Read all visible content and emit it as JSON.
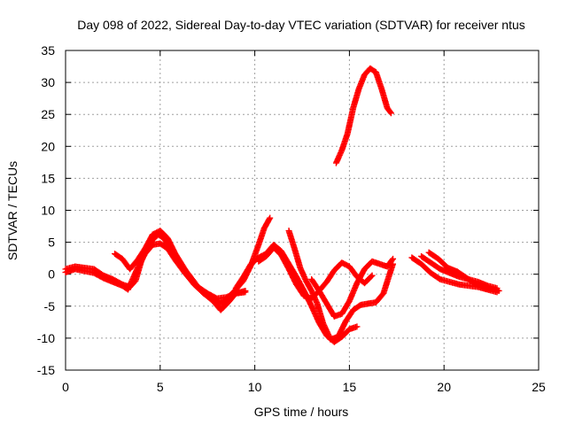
{
  "chart_data": {
    "type": "scatter",
    "title": "Day 098 of 2022, Sidereal Day-to-day VTEC variation (SDTVAR) for receiver ntus",
    "xlabel": "GPS time / hours",
    "ylabel": "SDTVAR / TECUs",
    "xlim": [
      0,
      25
    ],
    "ylim": [
      -15,
      35
    ],
    "xticks": [
      0,
      5,
      10,
      15,
      20,
      25
    ],
    "yticks": [
      -15,
      -10,
      -5,
      0,
      5,
      10,
      15,
      20,
      25,
      30,
      35
    ],
    "grid": true,
    "marker": "+",
    "color": "#ff0000",
    "series": [
      {
        "name": "track-1",
        "points": [
          [
            0.0,
            0.8
          ],
          [
            0.5,
            1.2
          ],
          [
            1.0,
            1.0
          ],
          [
            1.5,
            0.8
          ],
          [
            2.0,
            -0.2
          ],
          [
            2.5,
            -0.8
          ],
          [
            3.0,
            -1.6
          ],
          [
            3.4,
            -2.0
          ],
          [
            3.7,
            -1.0
          ],
          [
            4.0,
            2.0
          ],
          [
            4.3,
            4.0
          ],
          [
            4.6,
            5.4
          ],
          [
            4.9,
            6.2
          ],
          [
            5.2,
            5.6
          ],
          [
            5.6,
            3.8
          ],
          [
            6.0,
            1.8
          ],
          [
            6.5,
            0.0
          ],
          [
            7.0,
            -2.0
          ],
          [
            7.5,
            -3.0
          ],
          [
            8.0,
            -3.8
          ],
          [
            8.5,
            -3.6
          ],
          [
            9.0,
            -3.0
          ],
          [
            9.5,
            -2.8
          ]
        ]
      },
      {
        "name": "track-2",
        "points": [
          [
            0.0,
            0.3
          ],
          [
            0.5,
            0.8
          ],
          [
            1.0,
            0.5
          ],
          [
            1.5,
            0.2
          ],
          [
            2.0,
            -0.6
          ],
          [
            2.5,
            -1.2
          ],
          [
            3.0,
            -1.8
          ],
          [
            3.3,
            -2.4
          ],
          [
            3.6,
            -0.4
          ],
          [
            3.9,
            1.6
          ],
          [
            4.2,
            3.2
          ],
          [
            4.6,
            4.6
          ],
          [
            5.0,
            4.8
          ],
          [
            5.4,
            4.0
          ],
          [
            5.8,
            2.2
          ],
          [
            6.3,
            0.2
          ],
          [
            6.8,
            -1.6
          ],
          [
            7.3,
            -3.0
          ],
          [
            7.8,
            -4.2
          ],
          [
            8.2,
            -5.6
          ],
          [
            8.6,
            -4.4
          ],
          [
            9.0,
            -3.0
          ],
          [
            9.5,
            -2.6
          ]
        ]
      },
      {
        "name": "track-3",
        "points": [
          [
            2.6,
            3.2
          ],
          [
            3.0,
            2.4
          ],
          [
            3.4,
            0.8
          ],
          [
            3.8,
            2.2
          ],
          [
            4.2,
            4.0
          ],
          [
            4.6,
            6.2
          ],
          [
            5.0,
            6.8
          ],
          [
            5.4,
            5.6
          ],
          [
            5.8,
            3.2
          ],
          [
            6.3,
            0.8
          ],
          [
            6.8,
            -1.6
          ],
          [
            7.3,
            -3.0
          ],
          [
            7.8,
            -3.6
          ],
          [
            8.2,
            -4.6
          ],
          [
            8.6,
            -3.6
          ],
          [
            9.0,
            -2.4
          ],
          [
            9.4,
            -1.0
          ],
          [
            9.8,
            1.4
          ],
          [
            10.2,
            4.6
          ],
          [
            10.5,
            7.2
          ],
          [
            10.8,
            8.8
          ]
        ]
      },
      {
        "name": "track-4",
        "points": [
          [
            9.0,
            -2.2
          ],
          [
            9.4,
            -0.4
          ],
          [
            9.8,
            1.6
          ],
          [
            10.2,
            2.6
          ],
          [
            10.6,
            3.2
          ],
          [
            11.0,
            4.6
          ],
          [
            11.4,
            3.6
          ],
          [
            11.8,
            1.6
          ],
          [
            12.2,
            -0.4
          ],
          [
            12.6,
            -2.6
          ],
          [
            13.0,
            -5.0
          ],
          [
            13.4,
            -7.6
          ],
          [
            13.8,
            -9.6
          ],
          [
            14.2,
            -10.6
          ],
          [
            14.6,
            -9.8
          ],
          [
            15.0,
            -8.6
          ],
          [
            15.4,
            -8.2
          ]
        ]
      },
      {
        "name": "track-5",
        "points": [
          [
            10.2,
            2.0
          ],
          [
            10.6,
            2.8
          ],
          [
            11.0,
            4.2
          ],
          [
            11.4,
            3.0
          ],
          [
            11.8,
            0.8
          ],
          [
            12.2,
            -1.6
          ],
          [
            12.6,
            -3.4
          ],
          [
            13.0,
            -3.8
          ],
          [
            13.4,
            -2.6
          ],
          [
            13.8,
            -1.2
          ],
          [
            14.2,
            0.6
          ],
          [
            14.6,
            1.8
          ],
          [
            15.0,
            1.2
          ],
          [
            15.4,
            -0.4
          ],
          [
            15.8,
            -1.4
          ],
          [
            16.2,
            -0.2
          ]
        ]
      },
      {
        "name": "track-6",
        "points": [
          [
            11.8,
            6.8
          ],
          [
            12.1,
            4.0
          ],
          [
            12.4,
            1.0
          ],
          [
            12.7,
            -1.0
          ],
          [
            13.0,
            -2.6
          ],
          [
            13.3,
            -4.6
          ],
          [
            13.6,
            -7.6
          ],
          [
            14.0,
            -10.2
          ],
          [
            14.4,
            -9.8
          ],
          [
            14.8,
            -7.4
          ],
          [
            15.2,
            -5.6
          ],
          [
            15.6,
            -4.8
          ],
          [
            16.0,
            -4.6
          ],
          [
            16.4,
            -4.4
          ],
          [
            16.8,
            -3.0
          ],
          [
            17.1,
            -0.2
          ],
          [
            17.3,
            1.6
          ]
        ]
      },
      {
        "name": "track-7",
        "points": [
          [
            13.0,
            -0.8
          ],
          [
            13.4,
            -2.6
          ],
          [
            13.8,
            -4.6
          ],
          [
            14.2,
            -6.6
          ],
          [
            14.6,
            -6.2
          ],
          [
            15.0,
            -4.2
          ],
          [
            15.4,
            -1.4
          ],
          [
            15.8,
            0.8
          ],
          [
            16.2,
            2.0
          ],
          [
            16.6,
            1.6
          ],
          [
            17.0,
            1.2
          ],
          [
            17.3,
            2.4
          ]
        ]
      },
      {
        "name": "track-8",
        "points": [
          [
            14.3,
            17.4
          ],
          [
            14.6,
            19.4
          ],
          [
            14.9,
            22.0
          ],
          [
            15.2,
            26.0
          ],
          [
            15.5,
            29.0
          ],
          [
            15.8,
            31.2
          ],
          [
            16.1,
            32.2
          ],
          [
            16.4,
            31.6
          ],
          [
            16.7,
            29.0
          ],
          [
            17.0,
            26.0
          ],
          [
            17.2,
            25.2
          ]
        ]
      },
      {
        "name": "track-9",
        "points": [
          [
            18.3,
            2.6
          ],
          [
            18.8,
            1.6
          ],
          [
            19.3,
            0.2
          ],
          [
            19.8,
            -0.8
          ],
          [
            20.3,
            -1.2
          ],
          [
            20.8,
            -1.6
          ],
          [
            21.3,
            -1.8
          ],
          [
            21.8,
            -2.0
          ],
          [
            22.3,
            -2.4
          ],
          [
            22.8,
            -2.8
          ]
        ]
      },
      {
        "name": "track-10",
        "points": [
          [
            18.8,
            2.8
          ],
          [
            19.3,
            1.8
          ],
          [
            19.8,
            0.8
          ],
          [
            20.3,
            0.2
          ],
          [
            20.8,
            -0.4
          ],
          [
            21.3,
            -0.8
          ],
          [
            21.8,
            -1.2
          ],
          [
            22.3,
            -1.8
          ],
          [
            22.8,
            -2.2
          ]
        ]
      },
      {
        "name": "track-11",
        "points": [
          [
            19.2,
            3.4
          ],
          [
            19.7,
            2.4
          ],
          [
            20.2,
            1.0
          ],
          [
            20.7,
            0.4
          ],
          [
            21.2,
            -0.6
          ],
          [
            21.7,
            -1.6
          ],
          [
            22.2,
            -2.2
          ],
          [
            22.7,
            -2.4
          ],
          [
            22.9,
            -2.6
          ]
        ]
      }
    ]
  }
}
